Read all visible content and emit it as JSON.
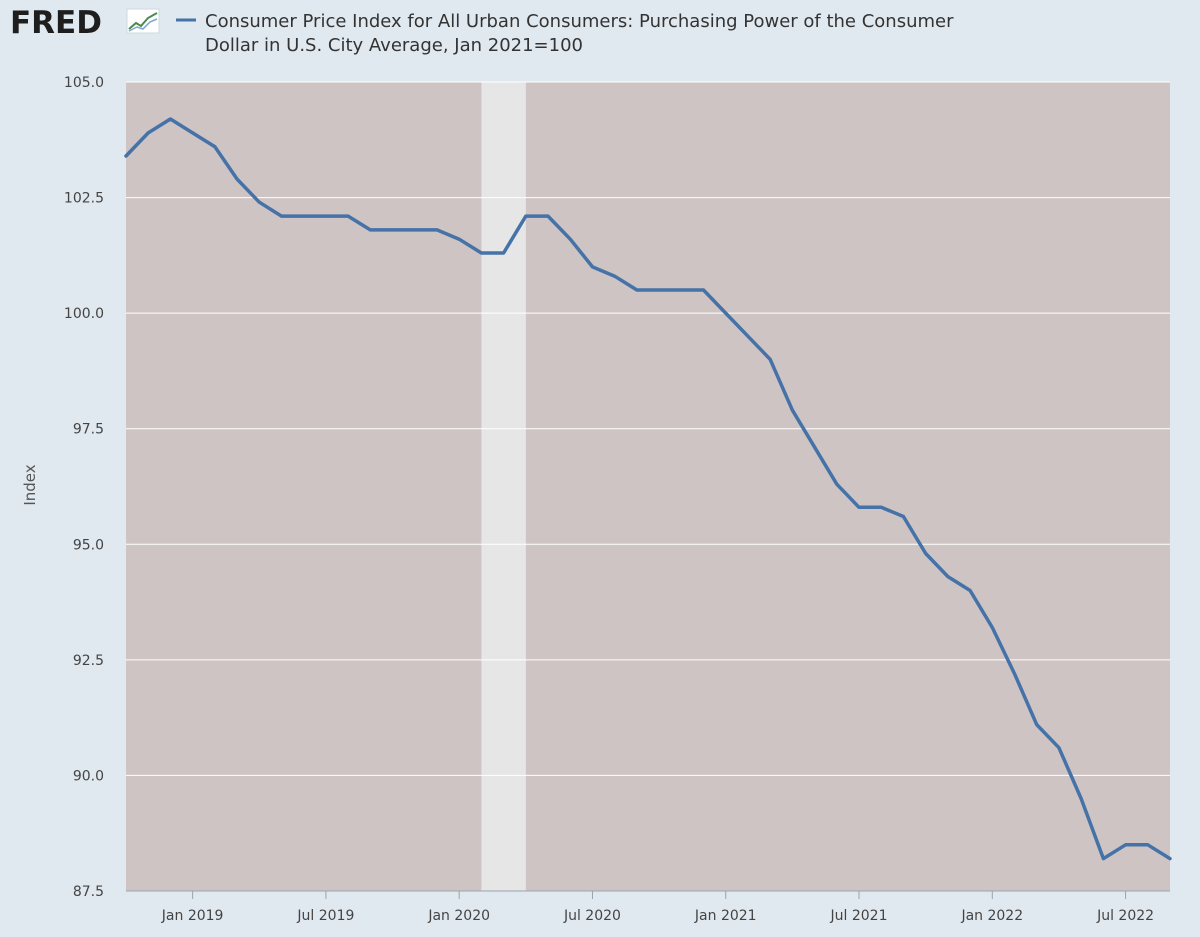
{
  "header": {
    "logo_text": "FRED",
    "logo_icon": "trend-chart-icon",
    "title_line1": "Consumer Price Index for All Urban Consumers: Purchasing Power of the Consumer",
    "title_line2": "Dollar in U.S. City Average, Jan 2021=100"
  },
  "colors": {
    "page_background": "#e1e9f0",
    "plot_background": "#cec4c4",
    "recession_band": "#e6e6e6",
    "series_line": "#4572a7",
    "gridline": "#ffffff"
  },
  "chart_data": {
    "type": "line",
    "title": "Consumer Price Index for All Urban Consumers: Purchasing Power of the Consumer Dollar in U.S. City Average, Jan 2021=100",
    "xlabel": "",
    "ylabel": "Index",
    "ylim": [
      87.5,
      105.0
    ],
    "xlim": [
      "2018-10",
      "2022-09"
    ],
    "y_ticks": [
      "105.0",
      "102.5",
      "100.0",
      "97.5",
      "95.0",
      "92.5",
      "90.0",
      "87.5"
    ],
    "x_ticks": [
      {
        "label": "Jan 2019",
        "date": "2019-01"
      },
      {
        "label": "Jul 2019",
        "date": "2019-07"
      },
      {
        "label": "Jan 2020",
        "date": "2020-01"
      },
      {
        "label": "Jul 2020",
        "date": "2020-07"
      },
      {
        "label": "Jan 2021",
        "date": "2021-01"
      },
      {
        "label": "Jul 2021",
        "date": "2021-07"
      },
      {
        "label": "Jan 2022",
        "date": "2022-01"
      },
      {
        "label": "Jul 2022",
        "date": "2022-07"
      }
    ],
    "grid": true,
    "legend": "top",
    "recession_shading": [
      {
        "start": "2020-02",
        "end": "2020-04"
      }
    ],
    "series": [
      {
        "name": "Consumer Price Index for All Urban Consumers: Purchasing Power of the Consumer Dollar in U.S. City Average, Jan 2021=100",
        "x": [
          "2018-10",
          "2018-11",
          "2018-12",
          "2019-01",
          "2019-02",
          "2019-03",
          "2019-04",
          "2019-05",
          "2019-06",
          "2019-07",
          "2019-08",
          "2019-09",
          "2019-10",
          "2019-11",
          "2019-12",
          "2020-01",
          "2020-02",
          "2020-03",
          "2020-04",
          "2020-05",
          "2020-06",
          "2020-07",
          "2020-08",
          "2020-09",
          "2020-10",
          "2020-11",
          "2020-12",
          "2021-01",
          "2021-02",
          "2021-03",
          "2021-04",
          "2021-05",
          "2021-06",
          "2021-07",
          "2021-08",
          "2021-09",
          "2021-10",
          "2021-11",
          "2021-12",
          "2022-01",
          "2022-02",
          "2022-03",
          "2022-04",
          "2022-05",
          "2022-06",
          "2022-07",
          "2022-08",
          "2022-09"
        ],
        "values": [
          103.4,
          103.9,
          104.2,
          103.9,
          103.6,
          102.9,
          102.4,
          102.1,
          102.1,
          102.1,
          102.1,
          101.8,
          101.8,
          101.8,
          101.8,
          101.6,
          101.3,
          101.3,
          102.1,
          102.1,
          101.6,
          101.0,
          100.8,
          100.5,
          100.5,
          100.5,
          100.5,
          100.0,
          99.5,
          99.0,
          97.9,
          97.1,
          96.3,
          95.8,
          95.8,
          95.6,
          94.8,
          94.3,
          94.0,
          93.2,
          92.2,
          91.1,
          90.6,
          89.5,
          88.2,
          88.5,
          88.5,
          88.2
        ]
      }
    ]
  }
}
